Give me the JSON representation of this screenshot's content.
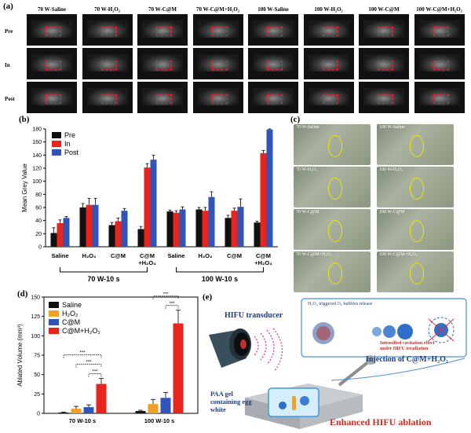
{
  "panel_a": {
    "label": "(a)",
    "columns": [
      "70 W-Saline",
      "70 W-H₂O₂",
      "70 W-C@M",
      "70 W-C@M+H₂O₂",
      "100 W-Saline",
      "100 W-H₂O₂",
      "100 W-C@M",
      "100 W-C@M+H₂O₂"
    ],
    "rows": [
      "Pre",
      "In",
      "Post"
    ]
  },
  "panel_c": {
    "label": "(c)",
    "tiles": [
      "70 W-Saline",
      "100 W-Saline",
      "70 W-H₂O₂",
      "100 W-H₂O₂",
      "70 W-C@M",
      "100 W-C@M",
      "70 W-C@M+H₂O₂",
      "100 W-C@M+H₂O₂"
    ]
  },
  "panel_e": {
    "label": "(e)",
    "transducer": "HIFU transducer",
    "gel": "PAA gel containing egg white",
    "injection": "Injection of C@M+H₂O₂",
    "inset_title": "H₂O₂ triggered O₂ bubbles release",
    "inset_effect": "Intensified cavitation effect under HIFU irradiation",
    "result": "Enhanced HIFU ablation"
  },
  "chart_data": [
    {
      "panel": "(b)",
      "type": "bar",
      "ylabel": "Mean Grey Value",
      "ylim": [
        0,
        180
      ],
      "yticks": [
        0,
        20,
        40,
        60,
        80,
        100,
        120,
        140,
        160,
        180
      ],
      "categories": [
        "Saline",
        "H₂O₂",
        "C@M",
        "C@M+H₂O₄",
        "Saline",
        "H₂O₂",
        "C@M",
        "C@M+H₂O₄"
      ],
      "groups": [
        "70 W-10 s",
        "100 W-10 s"
      ],
      "legend_position": "top-left",
      "series": [
        {
          "name": "Pre",
          "color": "#111111",
          "values": [
            21,
            60,
            33,
            27,
            54,
            57,
            44,
            37
          ],
          "errors": [
            8,
            6,
            4,
            4,
            2,
            3,
            4,
            2
          ]
        },
        {
          "name": "In",
          "color": "#e8241c",
          "values": [
            36,
            64,
            39,
            121,
            52,
            55,
            55,
            143
          ],
          "errors": [
            5,
            10,
            5,
            6,
            3,
            5,
            4,
            4
          ]
        },
        {
          "name": "Post",
          "color": "#2f55b8",
          "values": [
            44,
            64,
            55,
            133,
            57,
            76,
            61,
            179
          ],
          "errors": [
            2,
            10,
            3,
            7,
            4,
            8,
            12,
            1
          ]
        }
      ]
    },
    {
      "panel": "(d)",
      "type": "bar",
      "ylabel": "Ablated Volume (mm³)",
      "ylim": [
        0,
        150
      ],
      "yticks": [
        0,
        25,
        50,
        75,
        100,
        125,
        150
      ],
      "categories": [
        "70 W-10 s",
        "100 W-10 s"
      ],
      "legend_position": "top-left",
      "significance": "***",
      "series": [
        {
          "name": "Saline",
          "color": "#111111",
          "values": [
            1,
            3
          ],
          "errors": [
            0.5,
            1
          ]
        },
        {
          "name": "H₂O₂",
          "color": "#f0a028",
          "values": [
            6,
            12
          ],
          "errors": [
            3,
            6
          ]
        },
        {
          "name": "C@M",
          "color": "#2f55b8",
          "values": [
            8,
            20
          ],
          "errors": [
            3,
            7
          ]
        },
        {
          "name": "C@M+H₂O₂",
          "color": "#e8241c",
          "values": [
            38,
            116
          ],
          "errors": [
            7,
            17
          ]
        }
      ]
    }
  ]
}
